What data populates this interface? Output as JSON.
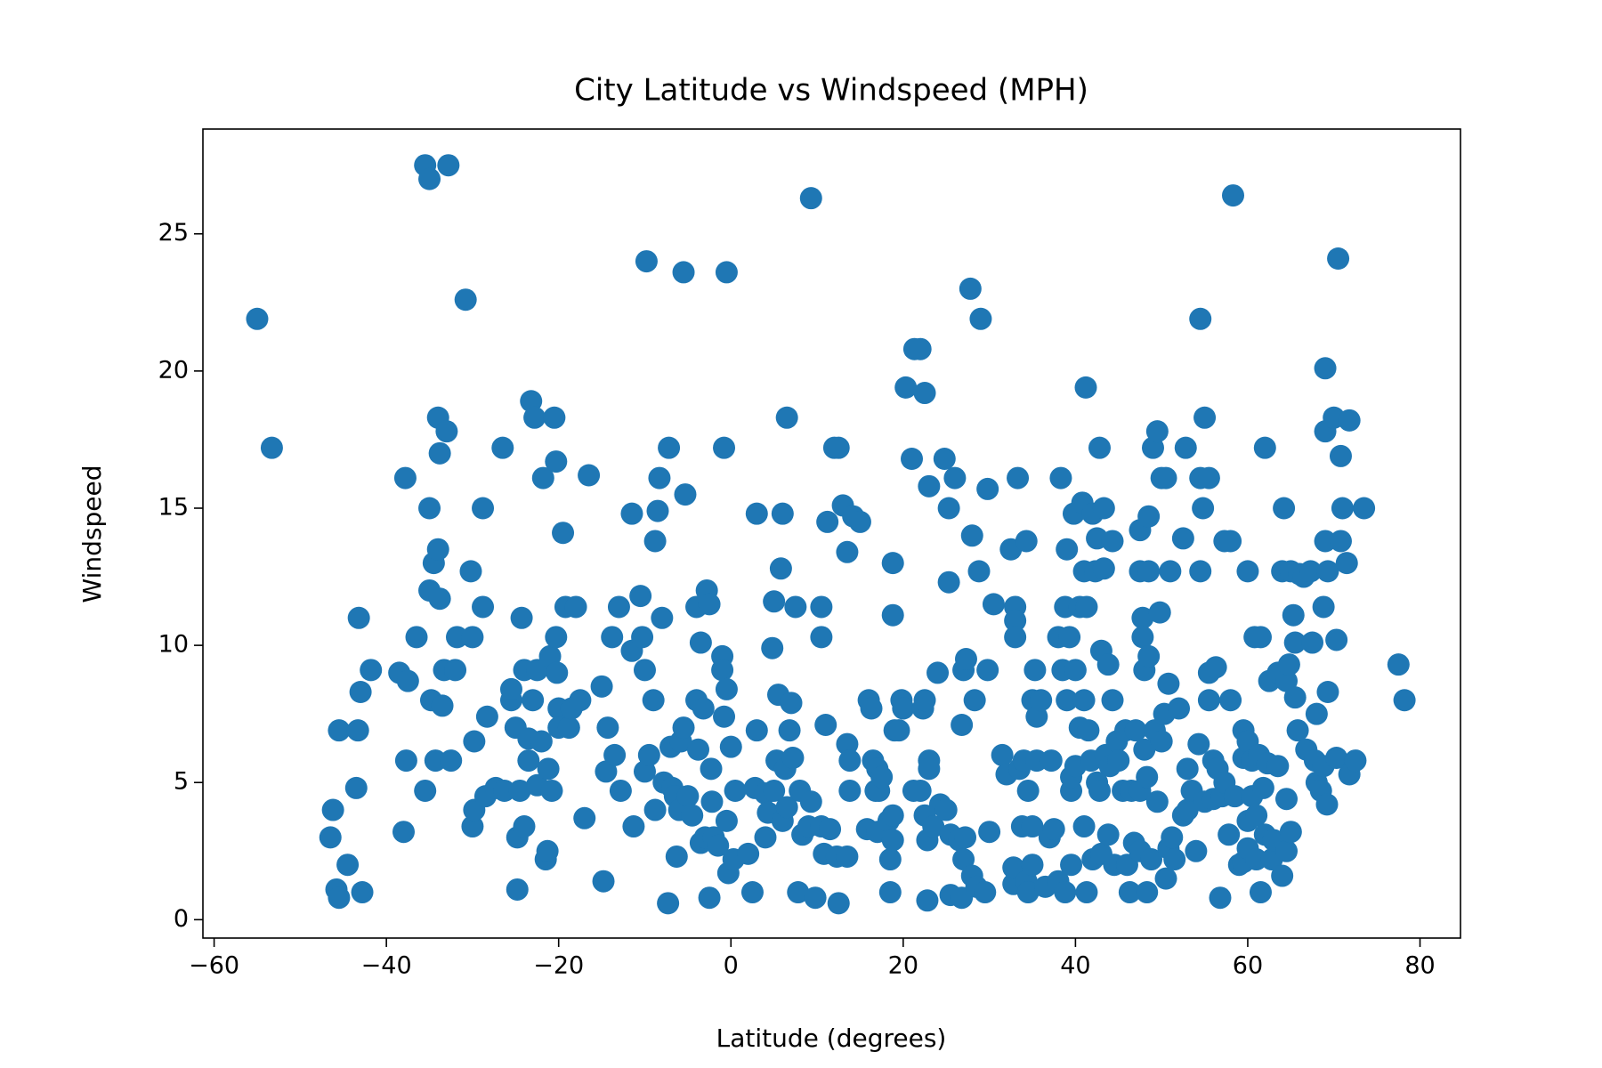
{
  "chart_data": {
    "type": "scatter",
    "title": "City Latitude vs Windspeed (MPH)",
    "x_label": "Latitude (degrees)",
    "y_label": "Windspeed",
    "color": "#1f77b4",
    "xlim": [
      -61.3,
      84.7
    ],
    "ylim": [
      -0.67,
      28.82
    ],
    "xticks": [
      {
        "value": -60,
        "label": "−60"
      },
      {
        "value": -40,
        "label": "−40"
      },
      {
        "value": -20,
        "label": "−20"
      },
      0,
      20,
      40,
      60,
      80
    ],
    "yticks": [
      0,
      5,
      10,
      15,
      20,
      25
    ],
    "grid": false,
    "x": [
      -55,
      -53.3,
      -35.5,
      -35,
      -32.8,
      -30.8,
      -46.5,
      -46.2,
      -45.8,
      -45.5,
      -45.5,
      -44.5,
      -43.5,
      -43.3,
      -43.2,
      -43,
      -42.8,
      -41.8,
      -38.5,
      -38,
      -37.8,
      -37.7,
      -37.5,
      -36.5,
      -35.5,
      -35,
      -35,
      -34.8,
      -34.5,
      -34.3,
      -34,
      -34,
      -33.8,
      -33.8,
      -33.5,
      -33.3,
      -33,
      -32.5,
      -32,
      -31.8,
      -30.2,
      -30,
      -30,
      -29.8,
      -29.8,
      -28.8,
      -28.8,
      -28.5,
      -28.3,
      -27.3,
      -26.5,
      -26.3,
      -25.5,
      -25.5,
      -25,
      -24.8,
      -24.8,
      -24.5,
      -24.3,
      -24,
      -24,
      -23.5,
      -23.5,
      -23.2,
      -23,
      -22.8,
      -22.5,
      -22.5,
      -22,
      -21.8,
      -21.5,
      -21.3,
      -21.2,
      -21,
      -20.8,
      -20.5,
      -20.3,
      -20.3,
      -20.2,
      -20,
      -20,
      -19.5,
      -19.2,
      -18.8,
      -18.5,
      -18,
      -17.5,
      -17,
      -16.5,
      -15,
      -14.8,
      -14.5,
      -14.3,
      -13.8,
      -13.5,
      -13,
      -12.8,
      -11.5,
      -11.5,
      -11.3,
      -10.5,
      -10.3,
      -10,
      -10,
      -9.8,
      -9.5,
      -9,
      -8.8,
      -8.8,
      -8.5,
      -8.3,
      -8,
      -7.8,
      -7.3,
      -7.2,
      -7,
      -6.8,
      -6.5,
      -6.3,
      -6,
      -5.8,
      -5.5,
      -5.5,
      -5.3,
      -5,
      -4.5,
      -4,
      -4,
      -3.8,
      -3.5,
      -3.5,
      -3.2,
      -3,
      -2.8,
      -2.5,
      -2.5,
      -2.3,
      -2.2,
      -2,
      -1.5,
      -1,
      -1,
      -0.8,
      -0.8,
      -0.5,
      -0.5,
      -0.5,
      -0.3,
      0,
      0.3,
      0.5,
      2,
      2.5,
      2.8,
      3,
      3,
      4,
      4,
      4.3,
      4.8,
      5,
      5,
      5.3,
      5.5,
      5.8,
      6,
      6,
      6.3,
      6.5,
      6.5,
      6.8,
      7,
      7.2,
      7.5,
      7.8,
      8,
      8.3,
      9,
      9.3,
      9.3,
      9.8,
      10.5,
      10.5,
      10.5,
      10.8,
      11,
      11.2,
      11.5,
      12,
      12.3,
      12.5,
      12.5,
      13,
      13.5,
      13.5,
      13.5,
      13.8,
      13.8,
      14.2,
      15,
      15.8,
      16,
      16.3,
      16.5,
      16.8,
      17,
      17,
      17.2,
      17.5,
      18.3,
      18.5,
      18.5,
      18.8,
      18.8,
      18.8,
      18.8,
      19,
      19.5,
      19.8,
      20,
      20.3,
      21,
      21.2,
      21.3,
      22,
      22,
      22.3,
      22.5,
      22.5,
      22.5,
      22.8,
      22.8,
      23,
      23,
      23,
      23.5,
      24,
      24.3,
      24.8,
      25,
      25.3,
      25.3,
      25.5,
      25.5,
      26,
      26.5,
      26.8,
      26.8,
      27,
      27,
      27.2,
      27.3,
      27.8,
      28,
      28,
      28.3,
      28.5,
      28.8,
      29,
      29.5,
      29.8,
      29.8,
      30,
      30.5,
      31.5,
      32,
      32.5,
      32.8,
      32.8,
      33,
      33,
      33,
      33.3,
      33.5,
      33.8,
      34,
      34.3,
      34.3,
      34.5,
      34.5,
      35,
      35,
      35,
      35.3,
      35.5,
      35.5,
      36,
      36.5,
      37,
      37.2,
      37.5,
      38,
      38,
      38.3,
      38.5,
      38.8,
      38.8,
      39,
      39,
      39.3,
      39.5,
      39.5,
      39.5,
      39.8,
      40,
      40,
      40.5,
      40.5,
      40.8,
      41,
      41,
      41,
      41.2,
      41.3,
      41.3,
      41.5,
      41.8,
      42,
      42,
      42.3,
      42.5,
      42.5,
      42.8,
      42.8,
      43,
      43,
      43.3,
      43.3,
      43.5,
      43.8,
      43.8,
      44,
      44.3,
      44.3,
      44.5,
      44.8,
      45,
      45.5,
      45.8,
      46,
      46.3,
      46.5,
      46.8,
      47,
      47.5,
      47.5,
      47.5,
      47.5,
      47.8,
      47.8,
      48,
      48,
      48.3,
      48.3,
      48.5,
      48.5,
      48.5,
      48.8,
      49,
      49.2,
      49.5,
      49.5,
      49.8,
      50,
      50,
      50.3,
      50.5,
      50.5,
      50.8,
      50.8,
      51,
      51.2,
      51.5,
      52,
      52.5,
      52.5,
      52.8,
      53,
      53,
      53.5,
      54,
      54.3,
      54.5,
      54.5,
      54.5,
      54.8,
      55,
      55,
      55.5,
      55.5,
      55.5,
      56,
      56,
      56.3,
      56.5,
      56.8,
      57,
      57.3,
      57.3,
      57.8,
      58,
      58,
      58.3,
      58.5,
      59,
      59.5,
      59.5,
      59.5,
      60,
      60,
      60,
      60,
      60.5,
      60.5,
      60.8,
      61,
      61,
      61.3,
      61.5,
      61.5,
      61.8,
      62,
      62,
      62.3,
      62.5,
      62.8,
      63,
      63.5,
      63.5,
      64,
      64,
      64.2,
      64.5,
      64.5,
      64.5,
      64.8,
      65,
      65,
      65.3,
      65.5,
      65.5,
      65.8,
      66,
      66.5,
      66.8,
      67.3,
      67.5,
      67.8,
      68,
      68,
      68.5,
      68.8,
      68.8,
      69,
      69,
      69,
      69.2,
      69.3,
      69.3,
      70,
      70.3,
      70.3,
      70.5,
      70.8,
      70.8,
      71,
      71.5,
      71.8,
      71.8,
      72.5,
      73.5,
      77.5,
      78.2
    ],
    "values": [
      21.9,
      17.2,
      27.5,
      27,
      27.5,
      22.6,
      3,
      4,
      1.1,
      0.8,
      6.9,
      2,
      4.8,
      6.9,
      11,
      8.3,
      1,
      9.1,
      9,
      3.2,
      16.1,
      5.8,
      8.7,
      10.3,
      4.7,
      15,
      12,
      8,
      13,
      5.8,
      18.3,
      13.5,
      17,
      11.7,
      7.8,
      9.1,
      17.8,
      5.8,
      9.1,
      10.3,
      12.7,
      10.3,
      3.4,
      4,
      6.5,
      11.4,
      15,
      4.5,
      7.4,
      4.8,
      17.2,
      4.7,
      8,
      8.4,
      7,
      1.1,
      3,
      4.7,
      11,
      9.1,
      3.4,
      6.6,
      5.8,
      18.9,
      8,
      18.3,
      9.1,
      4.9,
      6.5,
      16.1,
      2.2,
      2.5,
      5.5,
      9.6,
      4.7,
      18.3,
      16.7,
      10.3,
      9,
      7.7,
      7,
      14.1,
      11.4,
      7,
      7.7,
      11.4,
      8,
      3.7,
      16.2,
      8.5,
      1.4,
      5.4,
      7,
      10.3,
      6,
      11.4,
      4.7,
      14.8,
      9.8,
      3.4,
      11.8,
      10.3,
      9.1,
      5.4,
      24,
      6,
      8,
      4,
      13.8,
      14.9,
      16.1,
      11,
      5,
      0.6,
      17.2,
      6.3,
      4.8,
      4.5,
      2.3,
      4,
      6.5,
      23.6,
      7,
      15.5,
      4.5,
      3.8,
      8,
      11.4,
      6.2,
      2.8,
      10.1,
      7.7,
      3,
      12,
      11.5,
      0.8,
      5.5,
      4.3,
      3,
      2.7,
      9.6,
      9.1,
      17.2,
      7.4,
      23.6,
      8.4,
      3.6,
      1.7,
      6.3,
      2.2,
      4.7,
      2.4,
      1,
      4.8,
      6.9,
      14.8,
      4.6,
      3,
      3.9,
      9.9,
      11.6,
      4.7,
      5.8,
      8.2,
      12.8,
      14.8,
      3.6,
      5.5,
      4.1,
      18.3,
      6.9,
      7.9,
      5.9,
      11.4,
      1,
      4.7,
      3.1,
      3.4,
      4.3,
      26.3,
      0.8,
      11.4,
      10.3,
      3.4,
      2.4,
      7.1,
      14.5,
      3.3,
      17.2,
      2.3,
      0.6,
      17.2,
      15.1,
      2.3,
      13.4,
      6.4,
      5.8,
      4.7,
      14.7,
      14.5,
      3.3,
      8,
      7.7,
      5.8,
      4.7,
      3.2,
      5.5,
      4.7,
      5.2,
      3.6,
      1,
      2.2,
      2.9,
      13,
      11.1,
      3.8,
      6.9,
      6.9,
      8,
      7.7,
      19.4,
      16.8,
      4.7,
      20.8,
      4.7,
      20.8,
      7.7,
      3.8,
      8,
      19.2,
      2.9,
      0.7,
      5.8,
      15.8,
      5.5,
      3.4,
      9,
      4.2,
      16.8,
      4,
      15,
      12.3,
      3.1,
      0.9,
      16.1,
      2.9,
      7.1,
      0.8,
      9.1,
      2.2,
      3,
      9.5,
      23,
      1.6,
      14,
      8,
      1.2,
      12.7,
      21.9,
      1,
      9.1,
      15.7,
      3.2,
      11.5,
      6,
      5.3,
      13.5,
      1.3,
      1.9,
      11.4,
      10.9,
      10.3,
      16.1,
      5.5,
      3.4,
      5.8,
      13.8,
      1.4,
      4.7,
      1,
      2,
      8,
      3.4,
      9.1,
      7.4,
      5.8,
      8,
      1.2,
      3,
      5.8,
      3.3,
      1.4,
      10.3,
      16.1,
      9.1,
      1,
      11.4,
      13.5,
      8,
      10.3,
      4.7,
      2,
      5.2,
      14.8,
      9.1,
      5.6,
      7,
      11.4,
      15.2,
      12.7,
      8,
      3.4,
      19.4,
      1,
      11.4,
      6.9,
      5.8,
      14.8,
      2.2,
      12.7,
      13.9,
      5,
      17.2,
      4.7,
      9.8,
      2.4,
      12.8,
      15,
      6,
      9.3,
      3.1,
      5.6,
      8,
      13.8,
      2,
      6.5,
      5.8,
      4.7,
      6.9,
      2,
      1,
      4.7,
      2.8,
      6.9,
      14.2,
      12.7,
      2.5,
      4.7,
      11,
      10.3,
      6.2,
      9.1,
      1,
      5.2,
      12.7,
      9.6,
      14.7,
      2.2,
      17.2,
      6.9,
      17.8,
      4.3,
      11.2,
      16.1,
      6.5,
      7.5,
      16.1,
      1.5,
      8.6,
      2.6,
      12.7,
      3,
      2.2,
      7.7,
      3.8,
      13.9,
      17.2,
      5.5,
      4,
      4.7,
      2.5,
      6.4,
      21.9,
      16.1,
      12.7,
      15,
      18.3,
      4.3,
      9,
      16.1,
      8,
      4.4,
      5.8,
      9.2,
      5.5,
      0.8,
      4.5,
      13.8,
      5,
      3.1,
      13.8,
      8,
      26.4,
      4.5,
      2,
      6.9,
      5.9,
      2.1,
      6.5,
      3.6,
      2.6,
      12.7,
      4.5,
      5.8,
      10.3,
      3.8,
      2.2,
      6,
      10.3,
      1,
      4.8,
      3.1,
      17.2,
      5.7,
      8.7,
      2.2,
      2.9,
      9,
      5.6,
      12.7,
      1.6,
      15,
      2.5,
      8.7,
      4.4,
      9.3,
      12.7,
      3.2,
      11.1,
      10.1,
      8.1,
      6.9,
      12.6,
      12.5,
      6.2,
      12.7,
      10.1,
      5.8,
      5,
      7.5,
      4.7,
      5.6,
      11.4,
      20.1,
      17.8,
      13.8,
      4.2,
      12.7,
      8.3,
      18.3,
      5.9,
      10.2,
      24.1,
      16.9,
      13.8,
      15,
      13,
      5.3,
      18.2,
      5.8,
      15,
      9.3,
      8
    ]
  }
}
